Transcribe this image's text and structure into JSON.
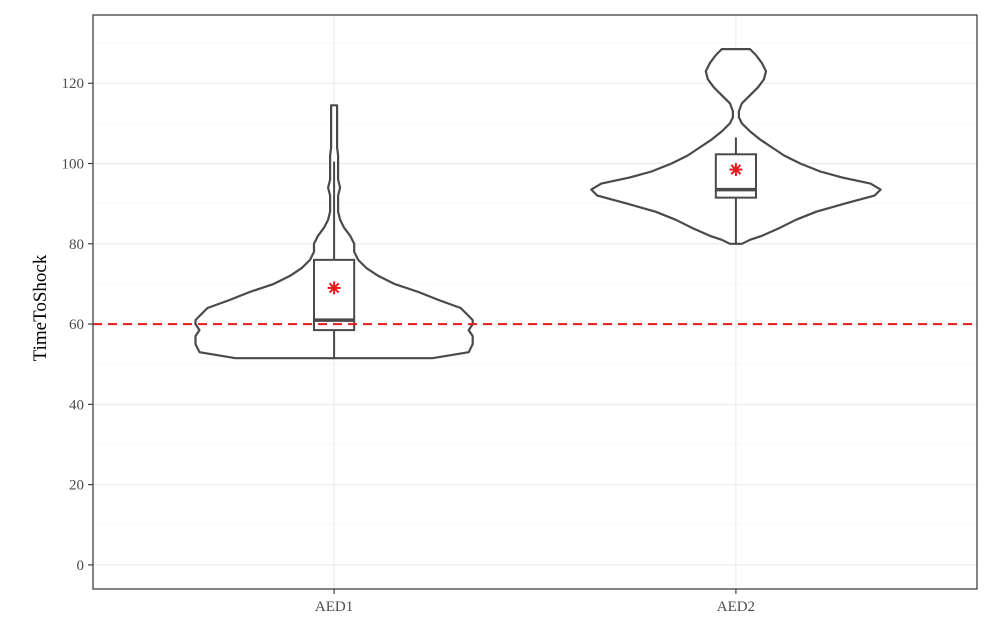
{
  "chart_data": {
    "type": "violin",
    "ylabel": "TimeToShock",
    "xlabel": "",
    "categories": [
      "AED1",
      "AED2"
    ],
    "ylim": [
      -6,
      137
    ],
    "y_ticks": [
      0,
      20,
      40,
      60,
      80,
      100,
      120
    ],
    "grid": true,
    "reference_line": {
      "y": 60,
      "style": "dashed",
      "color": "#e41a1c"
    },
    "groups": [
      {
        "name": "AED1",
        "min": 51.5,
        "q1": 58.5,
        "median": 61,
        "q3": 76,
        "whisker_low": 51.5,
        "whisker_high": 100.5,
        "max": 114.5,
        "mean": 69,
        "density": [
          [
            51.5,
            0.49
          ],
          [
            53,
            0.67
          ],
          [
            55,
            0.69
          ],
          [
            57,
            0.69
          ],
          [
            58.5,
            0.67
          ],
          [
            60,
            0.69
          ],
          [
            61,
            0.69
          ],
          [
            62,
            0.67
          ],
          [
            64,
            0.63
          ],
          [
            66,
            0.52
          ],
          [
            68,
            0.42
          ],
          [
            70,
            0.3
          ],
          [
            72,
            0.22
          ],
          [
            74,
            0.16
          ],
          [
            76,
            0.12
          ],
          [
            78,
            0.1
          ],
          [
            80,
            0.1
          ],
          [
            82,
            0.08
          ],
          [
            84,
            0.05
          ],
          [
            86,
            0.03
          ],
          [
            88,
            0.02
          ],
          [
            90,
            0.02
          ],
          [
            92,
            0.02
          ],
          [
            94,
            0.03
          ],
          [
            96,
            0.02
          ],
          [
            98,
            0.02
          ],
          [
            100,
            0.02
          ],
          [
            102,
            0.02
          ],
          [
            104,
            0.015
          ],
          [
            106,
            0.015
          ],
          [
            108,
            0.015
          ],
          [
            110,
            0.015
          ],
          [
            112,
            0.015
          ],
          [
            114.5,
            0.015
          ]
        ]
      },
      {
        "name": "AED2",
        "min": 80,
        "q1": 91.5,
        "median": 93.5,
        "q3": 102.3,
        "whisker_low": 80,
        "whisker_high": 106.5,
        "max": 128.5,
        "mean": 98.5,
        "density": [
          [
            80,
            0.03
          ],
          [
            81,
            0.07
          ],
          [
            82,
            0.13
          ],
          [
            84,
            0.22
          ],
          [
            86,
            0.3
          ],
          [
            88,
            0.4
          ],
          [
            90,
            0.54
          ],
          [
            92,
            0.69
          ],
          [
            93.5,
            0.72
          ],
          [
            95,
            0.67
          ],
          [
            96.5,
            0.53
          ],
          [
            98,
            0.42
          ],
          [
            100,
            0.32
          ],
          [
            102,
            0.24
          ],
          [
            104,
            0.18
          ],
          [
            106,
            0.12
          ],
          [
            108,
            0.07
          ],
          [
            110,
            0.03
          ],
          [
            111.5,
            0.015
          ],
          [
            113,
            0.015
          ],
          [
            115,
            0.03
          ],
          [
            117,
            0.07
          ],
          [
            119,
            0.11
          ],
          [
            121,
            0.14
          ],
          [
            123,
            0.15
          ],
          [
            125,
            0.13
          ],
          [
            127,
            0.1
          ],
          [
            128.5,
            0.07
          ]
        ]
      }
    ]
  }
}
